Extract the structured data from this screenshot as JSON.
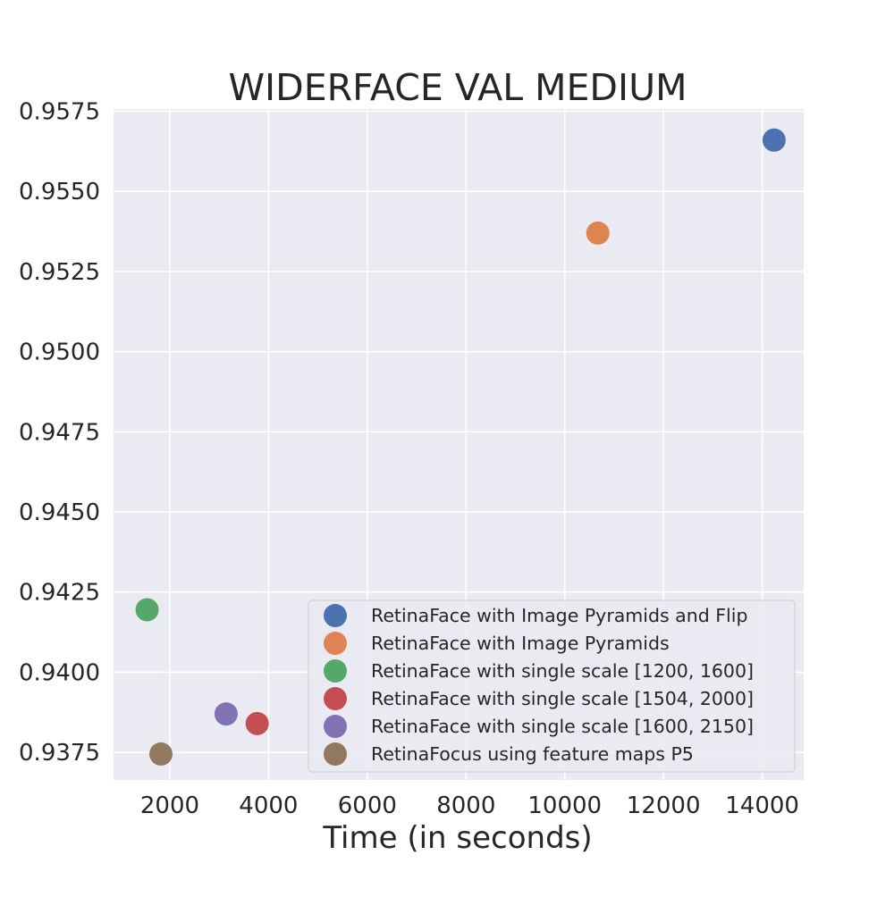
{
  "chart_data": {
    "type": "scatter",
    "title": "WIDERFACE VAL MEDIUM",
    "xlabel": "Time (in seconds)",
    "ylabel": "",
    "xlim": [
      860,
      14840
    ],
    "ylim": [
      0.93664,
      0.95757
    ],
    "xticks": [
      2000,
      4000,
      6000,
      8000,
      10000,
      12000,
      14000
    ],
    "xtick_labels": [
      "2000",
      "4000",
      "6000",
      "8000",
      "10000",
      "12000",
      "14000"
    ],
    "yticks": [
      0.9375,
      0.94,
      0.9425,
      0.945,
      0.9475,
      0.95,
      0.9525,
      0.955,
      0.9575
    ],
    "ytick_labels": [
      "0.9375",
      "0.9400",
      "0.9425",
      "0.9450",
      "0.9475",
      "0.9500",
      "0.9525",
      "0.9550",
      "0.9575"
    ],
    "grid": true,
    "legend_position": "bottom-right",
    "series": [
      {
        "name": "RetinaFace with Image Pyramids and Flip",
        "color": "#4c72b0",
        "x": [
          14240
        ],
        "y": [
          0.9566
        ]
      },
      {
        "name": "RetinaFace with Image Pyramids",
        "color": "#dd8452",
        "x": [
          10670
        ],
        "y": [
          0.9537
        ]
      },
      {
        "name": "RetinaFace with single scale [1200, 1600]",
        "color": "#55a868",
        "x": [
          1540
        ],
        "y": [
          0.94195
        ]
      },
      {
        "name": "RetinaFace with single scale [1504, 2000]",
        "color": "#c44e52",
        "x": [
          3770
        ],
        "y": [
          0.9384
        ]
      },
      {
        "name": "RetinaFace with single scale [1600, 2150]",
        "color": "#8172b3",
        "x": [
          3140
        ],
        "y": [
          0.9387
        ]
      },
      {
        "name": "RetinaFocus using feature maps P5",
        "color": "#937860",
        "x": [
          1820
        ],
        "y": [
          0.93745
        ]
      }
    ]
  }
}
